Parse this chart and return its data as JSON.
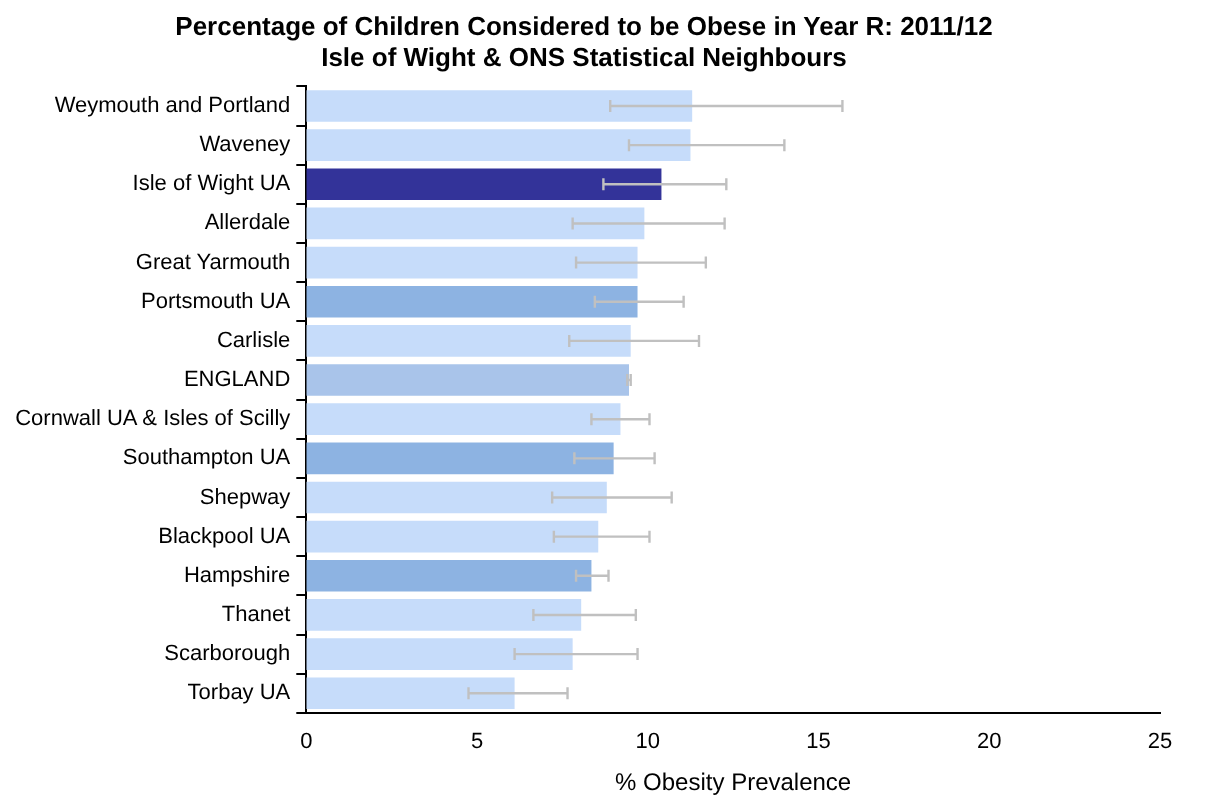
{
  "chart_data": {
    "type": "bar",
    "orientation": "horizontal",
    "title": "Percentage of Children Considered to be Obese in Year R: 2011/12\nIsle of Wight & ONS Statistical Neighbours",
    "xlabel": "% Obesity Prevalence",
    "categories": [
      "Weymouth and Portland",
      "Waveney",
      "Isle of Wight UA",
      "Allerdale",
      "Great Yarmouth",
      "Portsmouth UA",
      "Carlisle",
      "ENGLAND",
      "Cornwall UA & Isles of Scilly",
      "Southampton UA",
      "Shepway",
      "Blackpool UA",
      "Hampshire",
      "Thanet",
      "Scarborough",
      "Torbay UA"
    ],
    "values": [
      11.3,
      11.25,
      10.4,
      9.9,
      9.7,
      9.7,
      9.5,
      9.45,
      9.2,
      9.0,
      8.8,
      8.55,
      8.35,
      8.05,
      7.8,
      6.1
    ],
    "errors": [
      [
        8.9,
        15.7
      ],
      [
        9.45,
        14.0
      ],
      [
        8.7,
        12.3
      ],
      [
        7.8,
        12.25
      ],
      [
        7.9,
        11.7
      ],
      [
        8.45,
        11.05
      ],
      [
        7.7,
        11.5
      ],
      [
        9.4,
        9.5
      ],
      [
        8.35,
        10.05
      ],
      [
        7.85,
        10.2
      ],
      [
        7.2,
        10.7
      ],
      [
        7.25,
        10.05
      ],
      [
        7.9,
        8.85
      ],
      [
        6.65,
        9.65
      ],
      [
        6.1,
        9.7
      ],
      [
        4.75,
        7.65
      ]
    ],
    "colors": [
      "#c6dcfa",
      "#c6dcfa",
      "#333399",
      "#c6dcfa",
      "#c6dcfa",
      "#8db3e2",
      "#c6dcfa",
      "#a9c4ea",
      "#c6dcfa",
      "#8db3e2",
      "#c6dcfa",
      "#c6dcfa",
      "#8db3e2",
      "#c6dcfa",
      "#c6dcfa",
      "#c6dcfa"
    ],
    "xlim": [
      0,
      25
    ],
    "xticks": [
      0,
      5,
      10,
      15,
      20,
      25
    ],
    "grid": false,
    "legend": false
  }
}
